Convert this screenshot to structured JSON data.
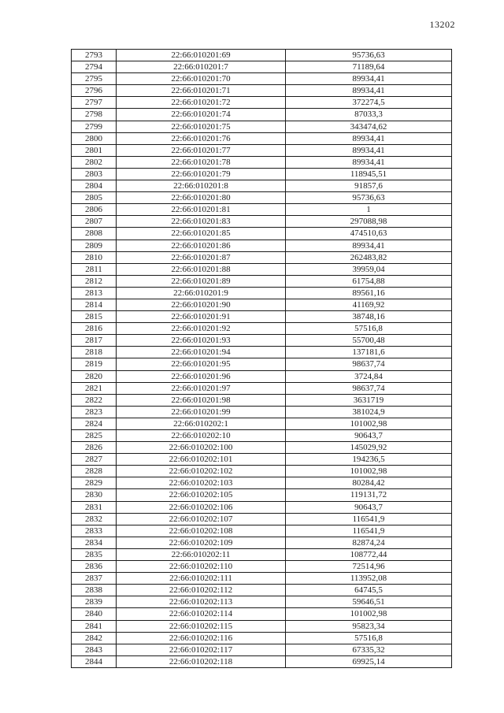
{
  "page": {
    "number": "13202"
  },
  "colors": {
    "background": "#ffffff",
    "border": "#1a1a1a",
    "text": "#1c1c1c"
  },
  "table": {
    "rows": [
      {
        "index": "2793",
        "cadastral_number": "22:66:010201:69",
        "value": "95736,63"
      },
      {
        "index": "2794",
        "cadastral_number": "22:66:010201:7",
        "value": "71189,64"
      },
      {
        "index": "2795",
        "cadastral_number": "22:66:010201:70",
        "value": "89934,41"
      },
      {
        "index": "2796",
        "cadastral_number": "22:66:010201:71",
        "value": "89934,41"
      },
      {
        "index": "2797",
        "cadastral_number": "22:66:010201:72",
        "value": "372274,5"
      },
      {
        "index": "2798",
        "cadastral_number": "22:66:010201:74",
        "value": "87033,3"
      },
      {
        "index": "2799",
        "cadastral_number": "22:66:010201:75",
        "value": "343474,62"
      },
      {
        "index": "2800",
        "cadastral_number": "22:66:010201:76",
        "value": "89934,41"
      },
      {
        "index": "2801",
        "cadastral_number": "22:66:010201:77",
        "value": "89934,41"
      },
      {
        "index": "2802",
        "cadastral_number": "22:66:010201:78",
        "value": "89934,41"
      },
      {
        "index": "2803",
        "cadastral_number": "22:66:010201:79",
        "value": "118945,51"
      },
      {
        "index": "2804",
        "cadastral_number": "22:66:010201:8",
        "value": "91857,6"
      },
      {
        "index": "2805",
        "cadastral_number": "22:66:010201:80",
        "value": "95736,63"
      },
      {
        "index": "2806",
        "cadastral_number": "22:66:010201:81",
        "value": "1"
      },
      {
        "index": "2807",
        "cadastral_number": "22:66:010201:83",
        "value": "297088,98"
      },
      {
        "index": "2808",
        "cadastral_number": "22:66:010201:85",
        "value": "474510,63"
      },
      {
        "index": "2809",
        "cadastral_number": "22:66:010201:86",
        "value": "89934,41"
      },
      {
        "index": "2810",
        "cadastral_number": "22:66:010201:87",
        "value": "262483,82"
      },
      {
        "index": "2811",
        "cadastral_number": "22:66:010201:88",
        "value": "39959,04"
      },
      {
        "index": "2812",
        "cadastral_number": "22:66:010201:89",
        "value": "61754,88"
      },
      {
        "index": "2813",
        "cadastral_number": "22:66:010201:9",
        "value": "89561,16"
      },
      {
        "index": "2814",
        "cadastral_number": "22:66:010201:90",
        "value": "41169,92"
      },
      {
        "index": "2815",
        "cadastral_number": "22:66:010201:91",
        "value": "38748,16"
      },
      {
        "index": "2816",
        "cadastral_number": "22:66:010201:92",
        "value": "57516,8"
      },
      {
        "index": "2817",
        "cadastral_number": "22:66:010201:93",
        "value": "55700,48"
      },
      {
        "index": "2818",
        "cadastral_number": "22:66:010201:94",
        "value": "137181,6"
      },
      {
        "index": "2819",
        "cadastral_number": "22:66:010201:95",
        "value": "98637,74"
      },
      {
        "index": "2820",
        "cadastral_number": "22:66:010201:96",
        "value": "3724,84"
      },
      {
        "index": "2821",
        "cadastral_number": "22:66:010201:97",
        "value": "98637,74"
      },
      {
        "index": "2822",
        "cadastral_number": "22:66:010201:98",
        "value": "3631719"
      },
      {
        "index": "2823",
        "cadastral_number": "22:66:010201:99",
        "value": "381024,9"
      },
      {
        "index": "2824",
        "cadastral_number": "22:66:010202:1",
        "value": "101002,98"
      },
      {
        "index": "2825",
        "cadastral_number": "22:66:010202:10",
        "value": "90643,7"
      },
      {
        "index": "2826",
        "cadastral_number": "22:66:010202:100",
        "value": "145029,92"
      },
      {
        "index": "2827",
        "cadastral_number": "22:66:010202:101",
        "value": "194236,5"
      },
      {
        "index": "2828",
        "cadastral_number": "22:66:010202:102",
        "value": "101002,98"
      },
      {
        "index": "2829",
        "cadastral_number": "22:66:010202:103",
        "value": "80284,42"
      },
      {
        "index": "2830",
        "cadastral_number": "22:66:010202:105",
        "value": "119131,72"
      },
      {
        "index": "2831",
        "cadastral_number": "22:66:010202:106",
        "value": "90643,7"
      },
      {
        "index": "2832",
        "cadastral_number": "22:66:010202:107",
        "value": "116541,9"
      },
      {
        "index": "2833",
        "cadastral_number": "22:66:010202:108",
        "value": "116541,9"
      },
      {
        "index": "2834",
        "cadastral_number": "22:66:010202:109",
        "value": "82874,24"
      },
      {
        "index": "2835",
        "cadastral_number": "22:66:010202:11",
        "value": "108772,44"
      },
      {
        "index": "2836",
        "cadastral_number": "22:66:010202:110",
        "value": "72514,96"
      },
      {
        "index": "2837",
        "cadastral_number": "22:66:010202:111",
        "value": "113952,08"
      },
      {
        "index": "2838",
        "cadastral_number": "22:66:010202:112",
        "value": "64745,5"
      },
      {
        "index": "2839",
        "cadastral_number": "22:66:010202:113",
        "value": "59646,51"
      },
      {
        "index": "2840",
        "cadastral_number": "22:66:010202:114",
        "value": "101002,98"
      },
      {
        "index": "2841",
        "cadastral_number": "22:66:010202:115",
        "value": "95823,34"
      },
      {
        "index": "2842",
        "cadastral_number": "22:66:010202:116",
        "value": "57516,8"
      },
      {
        "index": "2843",
        "cadastral_number": "22:66:010202:117",
        "value": "67335,32"
      },
      {
        "index": "2844",
        "cadastral_number": "22:66:010202:118",
        "value": "69925,14"
      }
    ]
  }
}
